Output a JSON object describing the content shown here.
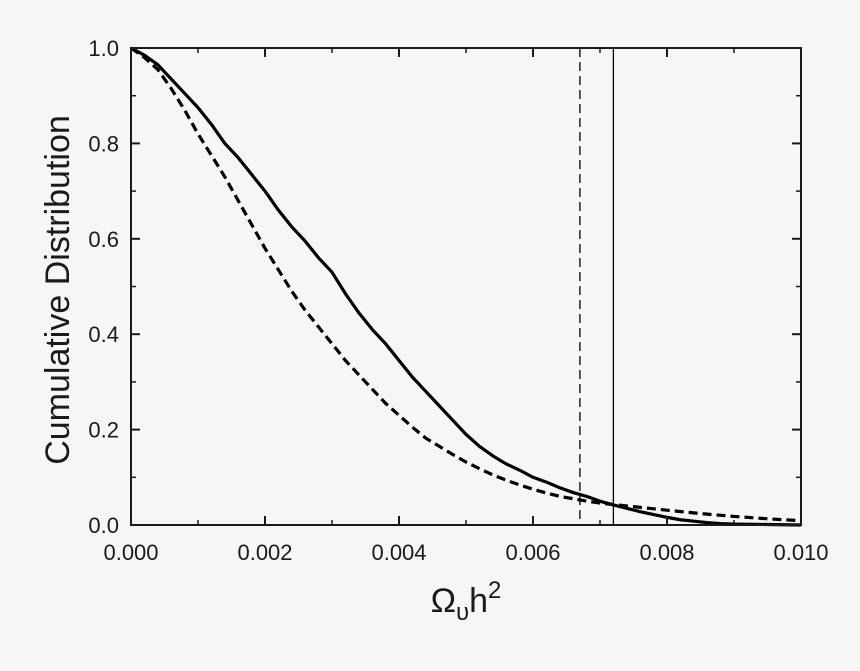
{
  "chart_data": {
    "type": "line",
    "title": "",
    "xlabel": "Ω",
    "xlabel_sub": "υ",
    "xlabel_rest": "h",
    "xlabel_sup": "2",
    "ylabel": "Cumulative Distribution",
    "xlim": [
      0.0,
      0.01
    ],
    "ylim": [
      0.0,
      1.0
    ],
    "xticks": [
      0.0,
      0.002,
      0.004,
      0.006,
      0.008,
      0.01
    ],
    "xtick_labels": [
      "0.000",
      "0.002",
      "0.004",
      "0.006",
      "0.008",
      "0.010"
    ],
    "yticks": [
      0.0,
      0.2,
      0.4,
      0.6,
      0.8,
      1.0
    ],
    "ytick_labels": [
      "0.0",
      "0.2",
      "0.4",
      "0.6",
      "0.8",
      "1.0"
    ],
    "grid": false,
    "legend": "none",
    "series": [
      {
        "style": "solid",
        "color": "#000000",
        "x": [
          0.0,
          0.0002,
          0.0004,
          0.0006,
          0.0008,
          0.001,
          0.0012,
          0.0014,
          0.0016,
          0.0018,
          0.002,
          0.0022,
          0.0024,
          0.0026,
          0.0028,
          0.003,
          0.0032,
          0.0034,
          0.0036,
          0.0038,
          0.004,
          0.0042,
          0.0044,
          0.0046,
          0.0048,
          0.005,
          0.0052,
          0.0054,
          0.0056,
          0.0058,
          0.006,
          0.0062,
          0.0064,
          0.0066,
          0.0068,
          0.007,
          0.0072,
          0.0074,
          0.0076,
          0.0078,
          0.008,
          0.0082,
          0.0084,
          0.0086,
          0.0088,
          0.009,
          0.0095,
          0.01
        ],
        "y": [
          1.0,
          0.985,
          0.965,
          0.935,
          0.905,
          0.875,
          0.84,
          0.8,
          0.77,
          0.735,
          0.7,
          0.66,
          0.625,
          0.595,
          0.56,
          0.53,
          0.485,
          0.445,
          0.41,
          0.38,
          0.345,
          0.31,
          0.28,
          0.25,
          0.22,
          0.19,
          0.165,
          0.145,
          0.128,
          0.115,
          0.1,
          0.09,
          0.078,
          0.068,
          0.06,
          0.05,
          0.042,
          0.035,
          0.028,
          0.022,
          0.016,
          0.011,
          0.008,
          0.005,
          0.003,
          0.002,
          0.001,
          0.0
        ]
      },
      {
        "style": "dashed",
        "color": "#000000",
        "x": [
          0.0,
          0.0002,
          0.0004,
          0.0006,
          0.0008,
          0.001,
          0.0012,
          0.0014,
          0.0016,
          0.0018,
          0.002,
          0.0022,
          0.0024,
          0.0026,
          0.0028,
          0.003,
          0.0032,
          0.0034,
          0.0036,
          0.0038,
          0.004,
          0.0042,
          0.0044,
          0.0046,
          0.0048,
          0.005,
          0.0052,
          0.0054,
          0.0056,
          0.0058,
          0.006,
          0.0062,
          0.0064,
          0.0066,
          0.0068,
          0.007,
          0.0072,
          0.0074,
          0.0076,
          0.0078,
          0.008,
          0.0085,
          0.009,
          0.0095,
          0.01
        ],
        "y": [
          1.0,
          0.98,
          0.955,
          0.915,
          0.87,
          0.82,
          0.775,
          0.73,
          0.68,
          0.63,
          0.58,
          0.535,
          0.49,
          0.45,
          0.415,
          0.38,
          0.345,
          0.315,
          0.285,
          0.255,
          0.23,
          0.205,
          0.182,
          0.165,
          0.148,
          0.132,
          0.118,
          0.105,
          0.094,
          0.084,
          0.075,
          0.067,
          0.06,
          0.055,
          0.05,
          0.046,
          0.043,
          0.04,
          0.037,
          0.034,
          0.031,
          0.024,
          0.018,
          0.013,
          0.009
        ]
      }
    ],
    "vlines": [
      {
        "x": 0.0067,
        "style": "dashed",
        "color": "#000000"
      },
      {
        "x": 0.0072,
        "style": "solid",
        "color": "#000000"
      }
    ]
  }
}
